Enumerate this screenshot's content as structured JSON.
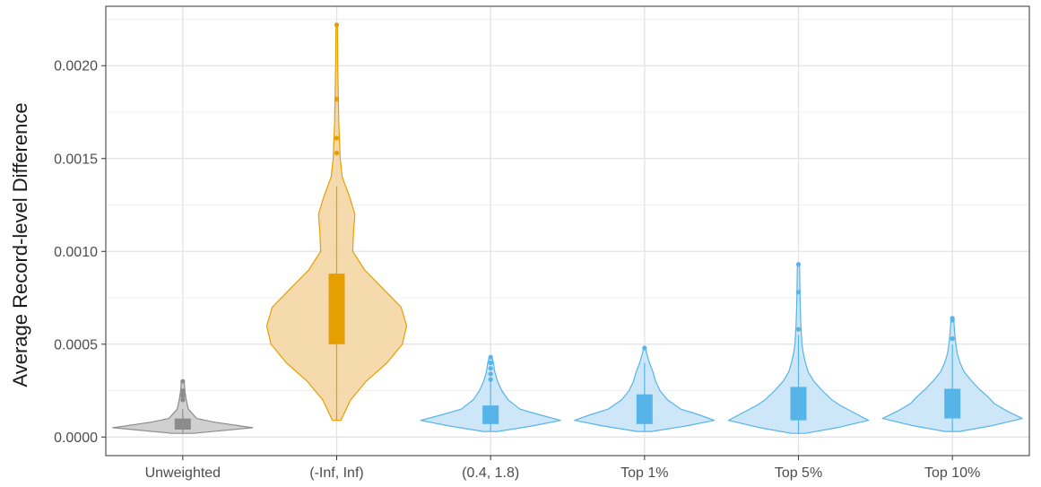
{
  "chart_data": {
    "type": "violin",
    "title": "",
    "xlabel": "",
    "ylabel": "Average Record-level Difference",
    "ylim": [
      -0.0001,
      0.00232
    ],
    "yticks": [
      0.0,
      0.0005,
      0.001,
      0.0015,
      0.002
    ],
    "ytick_labels": [
      "0.0000",
      "0.0005",
      "0.0010",
      "0.0015",
      "0.0020"
    ],
    "grid": true,
    "legend": "none",
    "categories": [
      "Unweighted",
      "(-Inf, Inf)",
      "(0.4, 1.8)",
      "Top 1%",
      "Top 5%",
      "Top 10%"
    ],
    "groups": [
      {
        "category": "Unweighted",
        "color": "#8c8c8c",
        "fill": "#c8c8c8",
        "min": 2e-05,
        "max": 0.0003,
        "q1": 4e-05,
        "median": 7e-05,
        "q3": 0.0001,
        "whisker_low": 2e-05,
        "whisker_high": 0.00015,
        "outliers": [
          0.0002,
          0.00022,
          0.00023,
          0.00025,
          0.0003
        ],
        "density": [
          [
            2e-05,
            0.15
          ],
          [
            5e-05,
            1.0
          ],
          [
            8e-05,
            0.45
          ],
          [
            0.0001,
            0.2
          ],
          [
            0.00015,
            0.08
          ],
          [
            0.0002,
            0.05
          ],
          [
            0.00025,
            0.03
          ],
          [
            0.0003,
            0.02
          ]
        ]
      },
      {
        "category": "(-Inf, Inf)",
        "color": "#e69f00",
        "fill": "#f3d4a0",
        "min": 9e-05,
        "max": 0.00222,
        "q1": 0.0005,
        "median": 0.00065,
        "q3": 0.00088,
        "whisker_low": 9e-05,
        "whisker_high": 0.00135,
        "outliers": [
          0.00153,
          0.00161,
          0.00182,
          0.00222
        ],
        "density": [
          [
            9e-05,
            0.06
          ],
          [
            0.0002,
            0.2
          ],
          [
            0.0003,
            0.42
          ],
          [
            0.0004,
            0.72
          ],
          [
            0.0005,
            0.94
          ],
          [
            0.0006,
            1.0
          ],
          [
            0.0007,
            0.92
          ],
          [
            0.0008,
            0.66
          ],
          [
            0.0009,
            0.4
          ],
          [
            0.001,
            0.23
          ],
          [
            0.0011,
            0.24
          ],
          [
            0.0012,
            0.26
          ],
          [
            0.0013,
            0.18
          ],
          [
            0.0014,
            0.08
          ],
          [
            0.0015,
            0.05
          ],
          [
            0.0016,
            0.04
          ],
          [
            0.0017,
            0.03
          ],
          [
            0.0018,
            0.025
          ],
          [
            0.002,
            0.015
          ],
          [
            0.00222,
            0.01
          ]
        ]
      },
      {
        "category": "(0.4, 1.8)",
        "color": "#56b4e9",
        "fill": "#c6e3f7",
        "min": 3e-05,
        "max": 0.00043,
        "q1": 7e-05,
        "median": 0.0001,
        "q3": 0.00017,
        "whisker_low": 3e-05,
        "whisker_high": 0.0003,
        "outliers": [
          0.00031,
          0.00034,
          0.00037,
          0.0004,
          0.00043
        ],
        "density": [
          [
            3e-05,
            0.1
          ],
          [
            6e-05,
            0.6
          ],
          [
            9e-05,
            1.0
          ],
          [
            0.00012,
            0.7
          ],
          [
            0.00015,
            0.42
          ],
          [
            0.0002,
            0.25
          ],
          [
            0.00025,
            0.16
          ],
          [
            0.0003,
            0.1
          ],
          [
            0.00035,
            0.06
          ],
          [
            0.0004,
            0.04
          ],
          [
            0.00043,
            0.02
          ]
        ]
      },
      {
        "category": "Top 1%",
        "color": "#56b4e9",
        "fill": "#c6e3f7",
        "min": 3e-05,
        "max": 0.00048,
        "q1": 7e-05,
        "median": 0.00012,
        "q3": 0.00023,
        "whisker_low": 3e-05,
        "whisker_high": 0.0004,
        "outliers": [
          0.00048
        ],
        "density": [
          [
            3e-05,
            0.1
          ],
          [
            6e-05,
            0.6
          ],
          [
            9e-05,
            1.0
          ],
          [
            0.00012,
            0.78
          ],
          [
            0.00015,
            0.52
          ],
          [
            0.0002,
            0.33
          ],
          [
            0.00025,
            0.22
          ],
          [
            0.0003,
            0.16
          ],
          [
            0.00035,
            0.12
          ],
          [
            0.0004,
            0.07
          ],
          [
            0.00045,
            0.03
          ],
          [
            0.00048,
            0.015
          ]
        ]
      },
      {
        "category": "Top 5%",
        "color": "#56b4e9",
        "fill": "#c6e3f7",
        "min": 2e-05,
        "max": 0.00093,
        "q1": 9e-05,
        "median": 0.00015,
        "q3": 0.00027,
        "whisker_low": 2e-05,
        "whisker_high": 0.00055,
        "outliers": [
          0.00058,
          0.00078,
          0.00093
        ],
        "density": [
          [
            2e-05,
            0.1
          ],
          [
            5e-05,
            0.55
          ],
          [
            9e-05,
            1.0
          ],
          [
            0.00013,
            0.8
          ],
          [
            0.00017,
            0.6
          ],
          [
            0.0002,
            0.48
          ],
          [
            0.00025,
            0.34
          ],
          [
            0.0003,
            0.22
          ],
          [
            0.00035,
            0.14
          ],
          [
            0.0004,
            0.1
          ],
          [
            0.00045,
            0.07
          ],
          [
            0.0005,
            0.05
          ],
          [
            0.0006,
            0.035
          ],
          [
            0.0007,
            0.025
          ],
          [
            0.0008,
            0.02
          ],
          [
            0.00093,
            0.015
          ]
        ]
      },
      {
        "category": "Top 10%",
        "color": "#56b4e9",
        "fill": "#c6e3f7",
        "min": 3e-05,
        "max": 0.00064,
        "q1": 0.0001,
        "median": 0.00016,
        "q3": 0.00026,
        "whisker_low": 3e-05,
        "whisker_high": 0.0005,
        "outliers": [
          0.00053,
          0.00063,
          0.00064
        ],
        "density": [
          [
            3e-05,
            0.1
          ],
          [
            6e-05,
            0.55
          ],
          [
            0.0001,
            1.0
          ],
          [
            0.00014,
            0.78
          ],
          [
            0.00018,
            0.6
          ],
          [
            0.00022,
            0.5
          ],
          [
            0.00026,
            0.38
          ],
          [
            0.0003,
            0.28
          ],
          [
            0.00035,
            0.17
          ],
          [
            0.0004,
            0.11
          ],
          [
            0.00045,
            0.07
          ],
          [
            0.0005,
            0.05
          ],
          [
            0.00055,
            0.035
          ],
          [
            0.0006,
            0.025
          ],
          [
            0.00064,
            0.02
          ]
        ]
      }
    ]
  }
}
